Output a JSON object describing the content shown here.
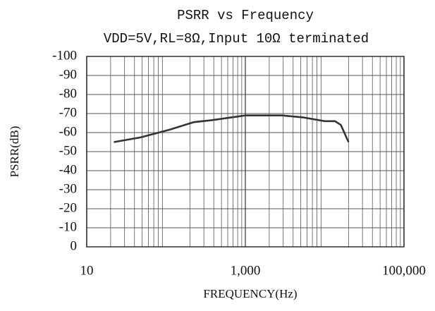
{
  "chart_data": {
    "type": "line",
    "title": "PSRR vs Frequency",
    "subtitle": "VDD=5V,RL=8Ω,Input 10Ω  terminated",
    "x_label": "FREQUENCY(Hz)",
    "y_label": "PSRR(dB)",
    "x": [
      22,
      48,
      110,
      225,
      375,
      1000,
      2900,
      5300,
      10000,
      13500,
      16000,
      20000
    ],
    "series": [
      {
        "name": "PSRR",
        "color": "#333333",
        "values": [
          -55,
          -57.5,
          -61.5,
          -65.5,
          -66.5,
          -69,
          -69,
          -68,
          -66,
          -66,
          -64,
          -55
        ]
      }
    ],
    "xlim": [
      10,
      100000
    ],
    "xticks": [
      10,
      {
        "value": 1000,
        "label": "1,000"
      },
      {
        "value": 100000,
        "label": "100,000"
      }
    ],
    "xlog": true,
    "ylim": [
      0,
      -100
    ],
    "yticks": [
      0,
      -10,
      -20,
      -30,
      -40,
      -50,
      -60,
      -70,
      -80,
      -90,
      -100
    ],
    "grid": true
  }
}
